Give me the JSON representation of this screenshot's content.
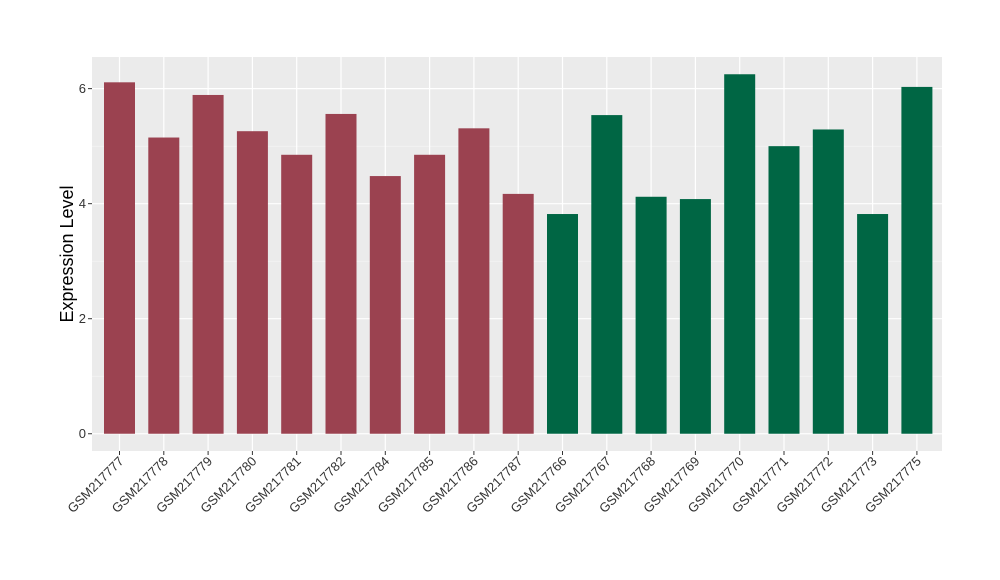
{
  "chart_data": {
    "type": "bar",
    "title": "",
    "xlabel": "",
    "ylabel": "Expression Level",
    "ylim": [
      -0.3,
      6.55
    ],
    "yticks": [
      0,
      2,
      4,
      6
    ],
    "grid": true,
    "legend": "none",
    "panel_color": "#EBEBEB",
    "categories": [
      "GSM217777",
      "GSM217778",
      "GSM217779",
      "GSM217780",
      "GSM217781",
      "GSM217782",
      "GSM217784",
      "GSM217785",
      "GSM217786",
      "GSM217787",
      "GSM217766",
      "GSM217767",
      "GSM217768",
      "GSM217769",
      "GSM217770",
      "GSM217771",
      "GSM217772",
      "GSM217773",
      "GSM217775"
    ],
    "values": [
      6.11,
      5.15,
      5.89,
      5.26,
      4.85,
      5.56,
      4.48,
      4.85,
      5.31,
      4.17,
      3.82,
      5.54,
      4.12,
      4.08,
      6.25,
      5.0,
      5.29,
      3.82,
      6.03
    ],
    "colors": [
      "#9B4250",
      "#9B4250",
      "#9B4250",
      "#9B4250",
      "#9B4250",
      "#9B4250",
      "#9B4250",
      "#9B4250",
      "#9B4250",
      "#9B4250",
      "#006644",
      "#006644",
      "#006644",
      "#006644",
      "#006644",
      "#006644",
      "#006644",
      "#006644",
      "#006644"
    ]
  }
}
